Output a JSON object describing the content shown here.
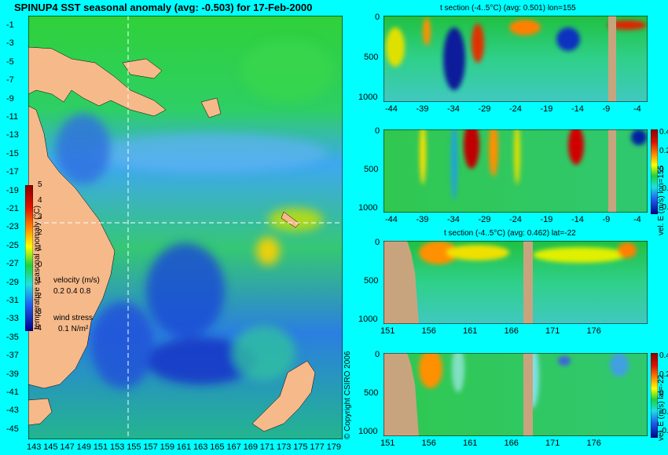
{
  "map": {
    "title": "SPINUP4 SST seasonal anomaly (avg: -0.503) for 17-Feb-2000",
    "lat_ticks": [
      "-1",
      "-3",
      "-5",
      "-7",
      "-9",
      "-11",
      "-13",
      "-15",
      "-17",
      "-19",
      "-21",
      "-23",
      "-25",
      "-27",
      "-29",
      "-31",
      "-33",
      "-35",
      "-37",
      "-39",
      "-41",
      "-43",
      "-45"
    ],
    "lon_ticks": [
      "143",
      "145",
      "147",
      "149",
      "151",
      "153",
      "155",
      "157",
      "159",
      "161",
      "163",
      "165",
      "167",
      "169",
      "171",
      "173",
      "175",
      "177",
      "179"
    ],
    "colorbar_ticks": [
      "5",
      "4",
      "3",
      "2",
      "1",
      "0",
      "-1",
      "-2",
      "-3",
      "-4"
    ],
    "colorbar_label": "temperature seasonal anomaly (°C)",
    "velocity_label": "velocity (m/s)",
    "velocity_scale": "0.2 0.4 0.8",
    "wind_label": "wind stress",
    "wind_scale": "0.1 N/m²",
    "copyright": "© Copyright CSIRO 2006",
    "land_color": "#f6b98a"
  },
  "panels": {
    "p1": {
      "title": "t section (-4..5°C) (avg: 0.501) lon=155",
      "y_ticks": [
        "0",
        "500",
        "1000"
      ],
      "x_ticks": [
        "-44",
        "-39",
        "-34",
        "-29",
        "-24",
        "-19",
        "-14",
        "-9",
        "-4"
      ]
    },
    "p2": {
      "y_ticks": [
        "0",
        "500",
        "1000"
      ],
      "x_ticks": [
        "-44",
        "-39",
        "-34",
        "-29",
        "-24",
        "-19",
        "-14",
        "-9",
        "-4"
      ],
      "cb_ticks": [
        "0.4",
        "0.2",
        "0",
        "-0.2",
        "-0.4"
      ],
      "cb_label": "vel. E (m/s) lon=155"
    },
    "p3": {
      "title": "t section (-4..5°C) (avg: 0.462) lat=-22",
      "y_ticks": [
        "0",
        "500",
        "1000"
      ],
      "x_ticks": [
        "151",
        "156",
        "161",
        "166",
        "171",
        "176"
      ]
    },
    "p4": {
      "y_ticks": [
        "0",
        "500",
        "1000"
      ],
      "x_ticks": [
        "151",
        "156",
        "161",
        "166",
        "171",
        "176"
      ],
      "cb_ticks": [
        "0.4",
        "0.2",
        "0",
        "-0.2",
        "-0.4"
      ],
      "cb_label": "vel. E (m/s) lat=-22"
    }
  }
}
